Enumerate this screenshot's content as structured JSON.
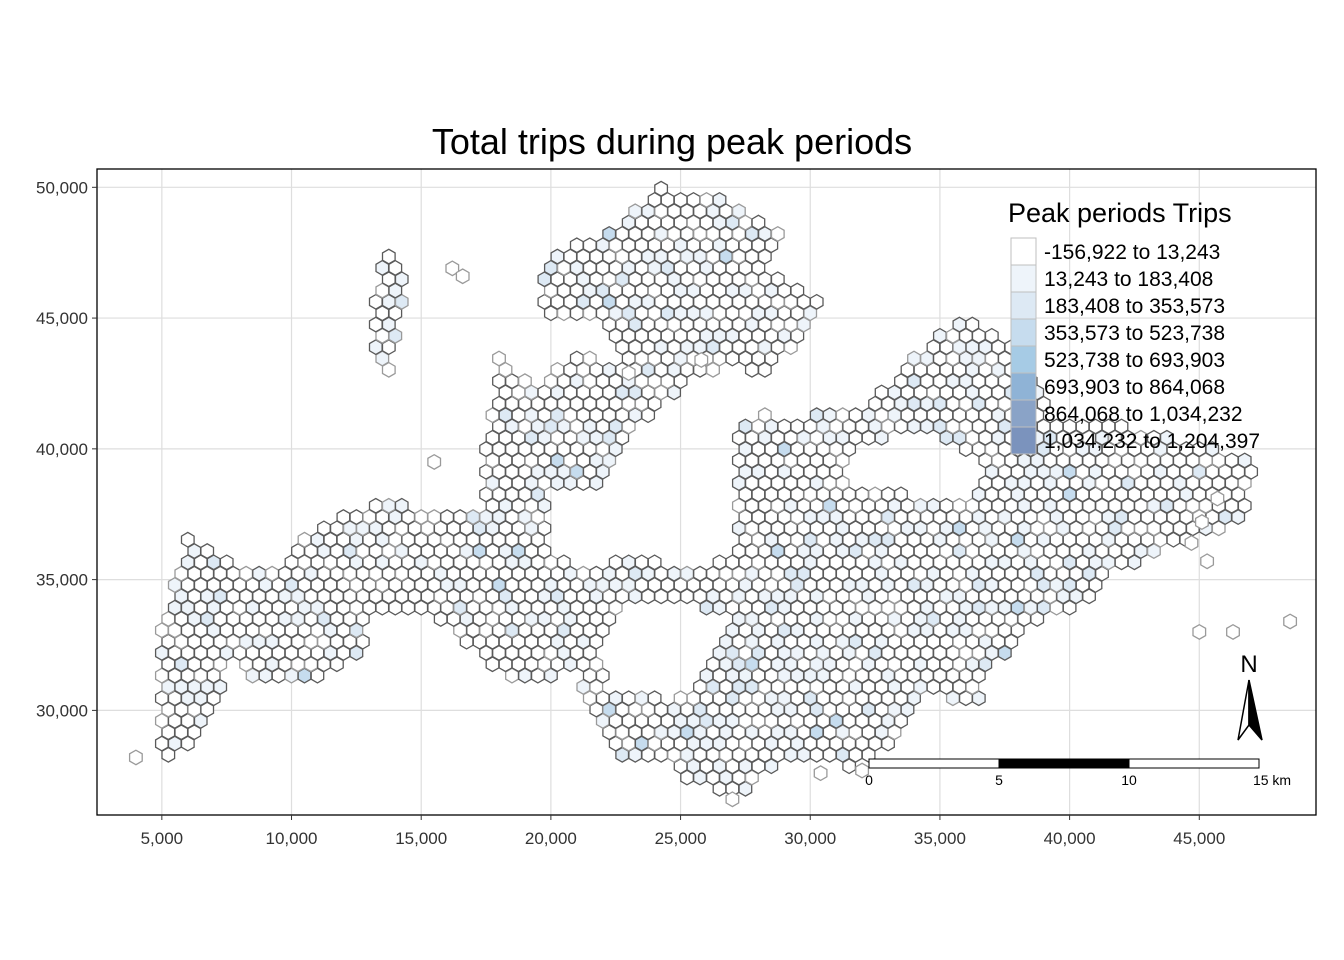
{
  "chart_data": {
    "type": "map",
    "title": "Total trips during peak periods",
    "xlim": [
      2500,
      49500
    ],
    "ylim": [
      26000,
      50700
    ],
    "x_ticks": [
      5000,
      10000,
      15000,
      20000,
      25000,
      30000,
      35000,
      40000,
      45000
    ],
    "x_tick_labels": [
      "5,000",
      "10,000",
      "15,000",
      "20,000",
      "25,000",
      "30,000",
      "35,000",
      "40,000",
      "45,000"
    ],
    "y_ticks": [
      30000,
      35000,
      40000,
      45000,
      50000
    ],
    "y_tick_labels": [
      "30,000",
      "35,000",
      "40,000",
      "45,000",
      "50,000"
    ],
    "grid": true,
    "hex_spacing": 500,
    "legend": {
      "title": "Peak periods Trips",
      "placement": "top-right",
      "classes": [
        {
          "label": "-156,922 to 13,243",
          "color": "#ffffff"
        },
        {
          "label": "13,243 to 183,408",
          "color": "#eef4fa"
        },
        {
          "label": "183,408 to 353,573",
          "color": "#dde9f4"
        },
        {
          "label": "353,573 to 523,738",
          "color": "#c6dcee"
        },
        {
          "label": "523,738 to 693,903",
          "color": "#a6cbe5"
        },
        {
          "label": "693,903 to 864,068",
          "color": "#8fb3d6"
        },
        {
          "label": "864,068 to 1,034,232",
          "color": "#8aa3c7"
        },
        {
          "label": "1,034,232 to 1,204,397",
          "color": "#7b93bd"
        }
      ]
    },
    "scale_bar": {
      "labels": [
        "0",
        "5",
        "10",
        "15 km"
      ]
    },
    "north_arrow": {
      "label": "N"
    },
    "colors": {
      "hex_stroke": "#5a5a5a",
      "hex_stroke_light": "#9a9a9a",
      "grid": "#dedede",
      "panel_border": "#000000"
    }
  }
}
